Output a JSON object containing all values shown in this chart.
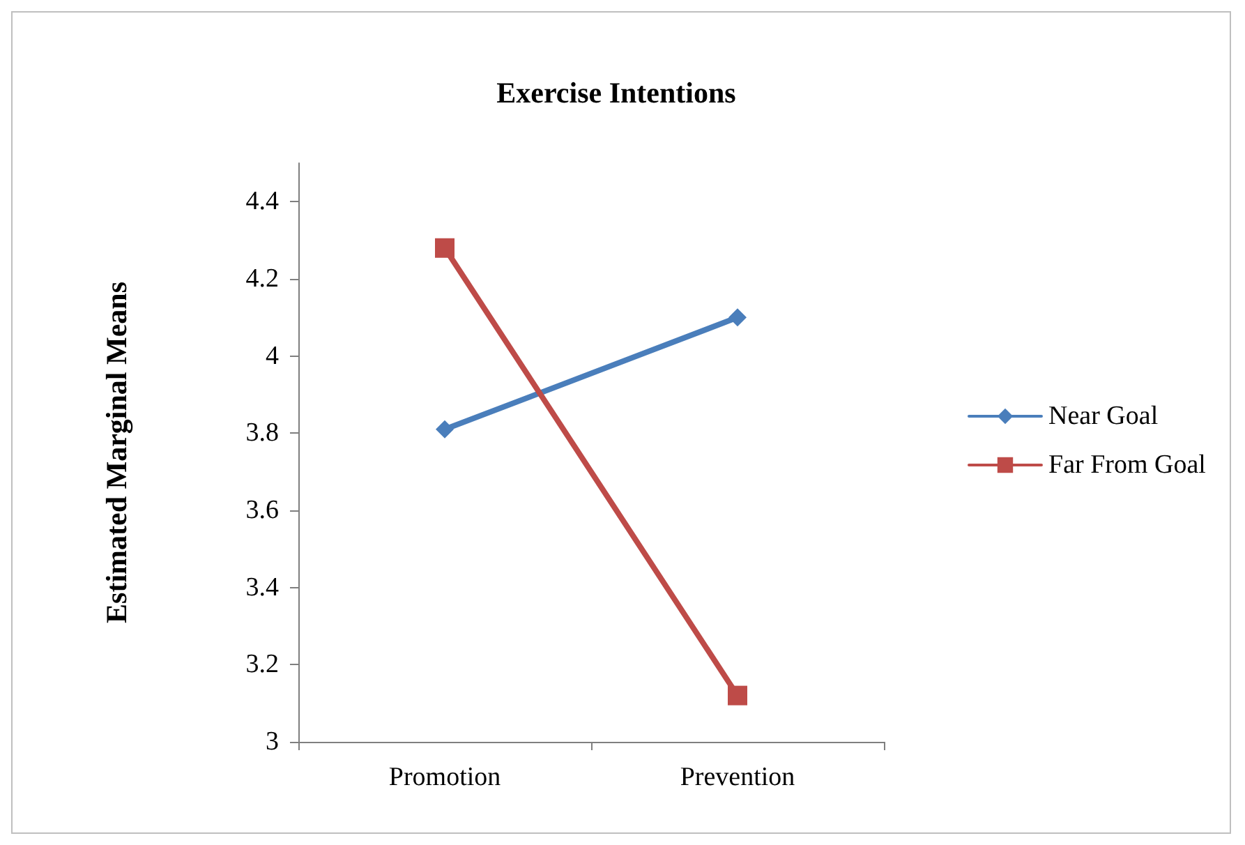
{
  "chart_data": {
    "type": "line",
    "title": "Exercise Intentions",
    "ylabel": "Estimated Marginal Means",
    "categories": [
      "Promotion",
      "Prevention"
    ],
    "series": [
      {
        "name": "Near Goal",
        "color": "#4a7ebb",
        "values": [
          3.81,
          4.1
        ],
        "marker": "diamond"
      },
      {
        "name": "Far From Goal",
        "color": "#be4b48",
        "values": [
          4.28,
          3.12
        ],
        "marker": "square"
      }
    ],
    "ylim": [
      3,
      4.5
    ],
    "yticks": [
      3,
      3.2,
      3.4,
      3.6,
      3.8,
      4,
      4.2,
      4.4
    ],
    "grid": false,
    "legend": "right",
    "line_style": "solid"
  }
}
